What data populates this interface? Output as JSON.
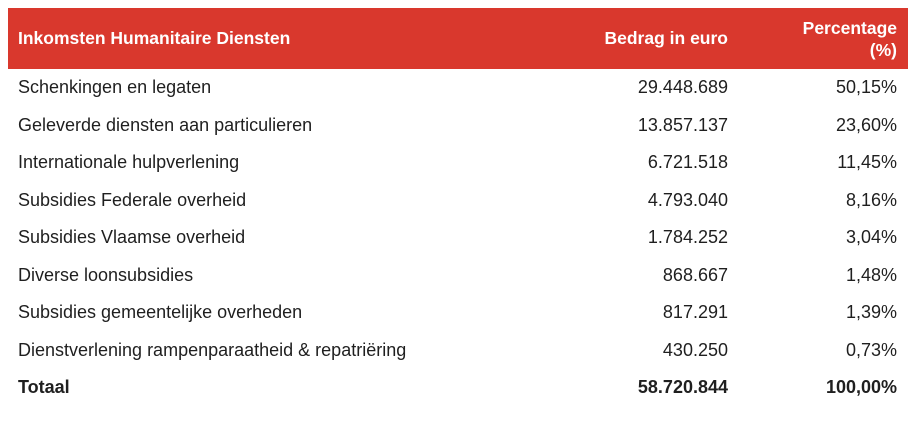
{
  "colors": {
    "header_bg": "#d9382d",
    "header_text": "#ffffff",
    "body_text": "#1f1f1f"
  },
  "table": {
    "header": {
      "col_income": "Inkomsten Humanitaire Diensten",
      "col_amount": "Bedrag in euro",
      "col_percentage": "Percentage\n(%)"
    },
    "rows": [
      {
        "label": "Schenkingen en legaten",
        "amount": "29.448.689",
        "percentage": "50,15%"
      },
      {
        "label": "Geleverde diensten aan particulieren",
        "amount": "13.857.137",
        "percentage": "23,60%"
      },
      {
        "label": "Internationale hulpverlening",
        "amount": "6.721.518",
        "percentage": "11,45%"
      },
      {
        "label": "Subsidies Federale overheid",
        "amount": "4.793.040",
        "percentage": "8,16%"
      },
      {
        "label": "Subsidies Vlaamse overheid",
        "amount": "1.784.252",
        "percentage": "3,04%"
      },
      {
        "label": "Diverse loonsubsidies",
        "amount": "868.667",
        "percentage": "1,48%"
      },
      {
        "label": "Subsidies gemeentelijke overheden",
        "amount": "817.291",
        "percentage": "1,39%"
      },
      {
        "label": "Dienstverlening rampenparaatheid & repatriëring",
        "amount": "430.250",
        "percentage": "0,73%"
      }
    ],
    "total": {
      "label": "Totaal",
      "amount": "58.720.844",
      "percentage": "100,00%"
    }
  }
}
